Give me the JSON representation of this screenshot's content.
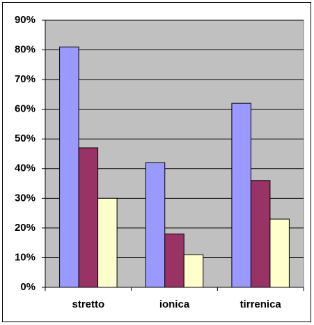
{
  "chart_data": {
    "type": "bar",
    "categories": [
      "stretto",
      "ionica",
      "tirrenica"
    ],
    "series": [
      {
        "color": "#9999ff",
        "values": [
          81,
          42,
          62
        ]
      },
      {
        "color": "#993366",
        "values": [
          47,
          18,
          36
        ]
      },
      {
        "color": "#ffffcc",
        "values": [
          30,
          11,
          23
        ]
      }
    ],
    "ylim": [
      0,
      90
    ],
    "yticks": [
      {
        "value": 0,
        "label": "0%"
      },
      {
        "value": 10,
        "label": "10%"
      },
      {
        "value": 20,
        "label": "20%"
      },
      {
        "value": 30,
        "label": "30%"
      },
      {
        "value": 40,
        "label": "40%"
      },
      {
        "value": 50,
        "label": "50%"
      },
      {
        "value": 60,
        "label": "60%"
      },
      {
        "value": 70,
        "label": "70%"
      },
      {
        "value": 80,
        "label": "80%"
      },
      {
        "value": 90,
        "label": "90%"
      }
    ],
    "grid": true,
    "plot_background": "#c0c0c0"
  }
}
